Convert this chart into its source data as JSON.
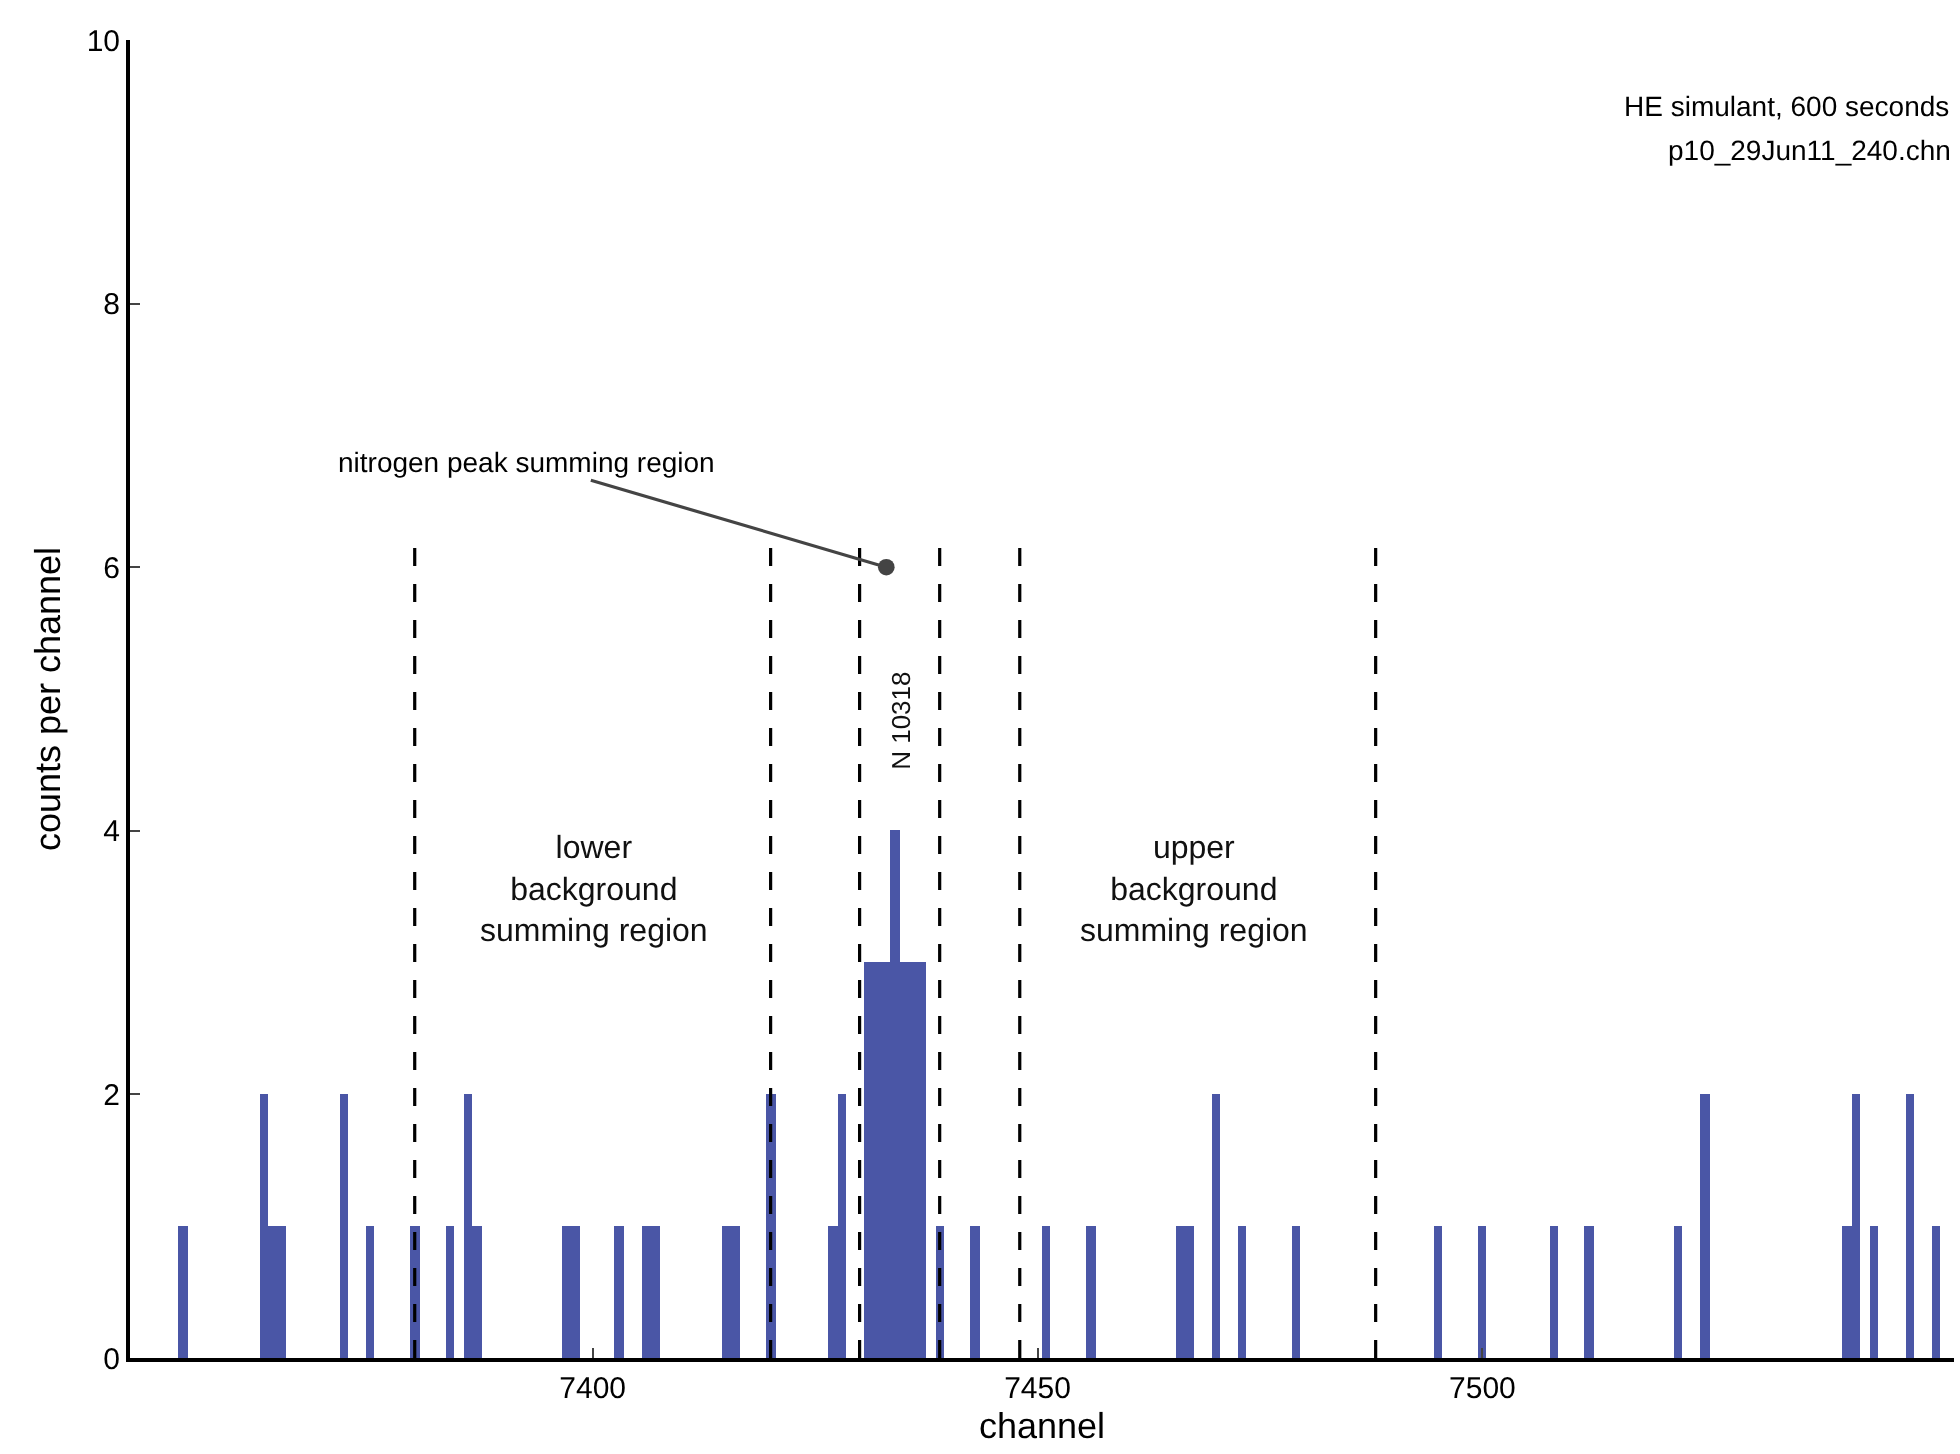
{
  "chart_data": {
    "type": "bar",
    "xlabel": "channel",
    "ylabel": "counts per channel",
    "x": [
      7354,
      7363,
      7364,
      7365,
      7372,
      7375,
      7380,
      7384,
      7386,
      7387,
      7397,
      7398,
      7403,
      7406,
      7407,
      7415,
      7416,
      7420,
      7427,
      7428,
      7431,
      7432,
      7433,
      7434,
      7435,
      7436,
      7437,
      7439,
      7443,
      7451,
      7456,
      7466,
      7467,
      7470,
      7473,
      7479,
      7495,
      7500,
      7508,
      7512,
      7522,
      7525,
      7541,
      7542,
      7544,
      7548,
      7551
    ],
    "values": [
      1,
      2,
      1,
      1,
      2,
      1,
      1,
      1,
      2,
      1,
      1,
      1,
      1,
      1,
      1,
      1,
      1,
      2,
      1,
      2,
      3,
      3,
      3,
      4,
      3,
      3,
      3,
      1,
      1,
      1,
      1,
      1,
      1,
      2,
      1,
      1,
      1,
      1,
      1,
      1,
      1,
      2,
      1,
      2,
      1,
      2,
      1
    ],
    "color": "#4a56a6",
    "xlim": [
      7348,
      7553
    ],
    "xticks": [
      7400,
      7450,
      7500
    ],
    "ylim": [
      0,
      10
    ],
    "yticks": [
      0,
      2,
      4,
      6,
      8,
      10
    ],
    "grid": false,
    "ref_lines": [
      {
        "axis": "x",
        "value": 7380,
        "color": "#000000",
        "line_style": "dashed"
      },
      {
        "axis": "x",
        "value": 7420,
        "color": "#000000",
        "line_style": "dashed"
      },
      {
        "axis": "x",
        "value": 7430,
        "color": "#000000",
        "line_style": "dashed"
      },
      {
        "axis": "x",
        "value": 7439,
        "color": "#000000",
        "line_style": "dashed"
      },
      {
        "axis": "x",
        "value": 7448,
        "color": "#000000",
        "line_style": "dashed"
      },
      {
        "axis": "x",
        "value": 7488,
        "color": "#000000",
        "line_style": "dashed"
      }
    ],
    "annotations": [
      "HE simulant, 600 seconds",
      "p10_29Jun11_240.chn",
      "lower background summing region",
      "upper background summing region",
      "N 10318",
      {
        "text": "nitrogen peak summing region",
        "x": 7433,
        "y": 6
      }
    ]
  }
}
